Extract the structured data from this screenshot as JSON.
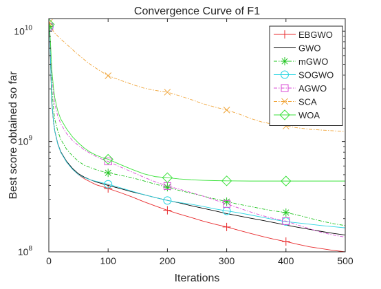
{
  "chart_data": {
    "type": "line",
    "title": "Convergence Curve of F1",
    "xlabel": "Iterations",
    "ylabel": "Best score obtained so far",
    "xlim": [
      0,
      500
    ],
    "ylim": [
      100000000.0,
      13000000000.0
    ],
    "yscale": "log",
    "grid": false,
    "legend_position": "top-right",
    "x_ticks": [
      0,
      100,
      200,
      300,
      400,
      500
    ],
    "x_tick_labels": [
      "0",
      "100",
      "200",
      "300",
      "400",
      "500"
    ],
    "y_ticks": [
      100000000.0,
      1000000000.0,
      10000000000.0
    ],
    "y_tick_labels": [
      {
        "base": "10",
        "exp": "8"
      },
      {
        "base": "10",
        "exp": "9"
      },
      {
        "base": "10",
        "exp": "10"
      }
    ],
    "series": [
      {
        "name": "EBGWO",
        "color": "#e8292b",
        "marker": "plus",
        "marker_x": [
          1,
          100,
          200,
          300,
          400
        ],
        "points": [
          [
            1,
            11000000000.0
          ],
          [
            3,
            5000000000.0
          ],
          [
            5,
            2200000000.0
          ],
          [
            8,
            1500000000.0
          ],
          [
            10,
            1250000000.0
          ],
          [
            15,
            950000000.0
          ],
          [
            20,
            800000000.0
          ],
          [
            30,
            650000000.0
          ],
          [
            40,
            560000000.0
          ],
          [
            50,
            500000000.0
          ],
          [
            60,
            460000000.0
          ],
          [
            70,
            430000000.0
          ],
          [
            80,
            405000000.0
          ],
          [
            90,
            390000000.0
          ],
          [
            100,
            375000000.0
          ],
          [
            120,
            345000000.0
          ],
          [
            140,
            315000000.0
          ],
          [
            160,
            285000000.0
          ],
          [
            180,
            260000000.0
          ],
          [
            200,
            238000000.0
          ],
          [
            220,
            220000000.0
          ],
          [
            240,
            205000000.0
          ],
          [
            260,
            190000000.0
          ],
          [
            280,
            178000000.0
          ],
          [
            300,
            168000000.0
          ],
          [
            320,
            157000000.0
          ],
          [
            340,
            147000000.0
          ],
          [
            360,
            138000000.0
          ],
          [
            380,
            130000000.0
          ],
          [
            400,
            124000000.0
          ],
          [
            420,
            117000000.0
          ],
          [
            440,
            111000000.0
          ],
          [
            460,
            107000000.0
          ],
          [
            480,
            103000000.0
          ],
          [
            500,
            100000000.0
          ]
        ]
      },
      {
        "name": "GWO",
        "color": "#000000",
        "marker": "none",
        "marker_x": [],
        "points": [
          [
            1,
            11000000000.0
          ],
          [
            3,
            5200000000.0
          ],
          [
            5,
            2300000000.0
          ],
          [
            8,
            1500000000.0
          ],
          [
            10,
            1250000000.0
          ],
          [
            15,
            960000000.0
          ],
          [
            20,
            810000000.0
          ],
          [
            30,
            660000000.0
          ],
          [
            40,
            570000000.0
          ],
          [
            50,
            510000000.0
          ],
          [
            60,
            475000000.0
          ],
          [
            70,
            450000000.0
          ],
          [
            80,
            430000000.0
          ],
          [
            90,
            415000000.0
          ],
          [
            100,
            400000000.0
          ],
          [
            120,
            375000000.0
          ],
          [
            140,
            350000000.0
          ],
          [
            160,
            330000000.0
          ],
          [
            180,
            310000000.0
          ],
          [
            200,
            293000000.0
          ],
          [
            220,
            278000000.0
          ],
          [
            240,
            262000000.0
          ],
          [
            260,
            248000000.0
          ],
          [
            280,
            235000000.0
          ],
          [
            300,
            222000000.0
          ],
          [
            320,
            212000000.0
          ],
          [
            340,
            202000000.0
          ],
          [
            360,
            193000000.0
          ],
          [
            380,
            184000000.0
          ],
          [
            400,
            175000000.0
          ],
          [
            420,
            167000000.0
          ],
          [
            440,
            160000000.0
          ],
          [
            460,
            153000000.0
          ],
          [
            480,
            147000000.0
          ],
          [
            500,
            142000000.0
          ]
        ]
      },
      {
        "name": "mGWO",
        "color": "#1fc41f",
        "marker": "star",
        "marker_x": [
          1,
          100,
          200,
          300,
          400
        ],
        "points": [
          [
            1,
            11000000000.0
          ],
          [
            3,
            6000000000.0
          ],
          [
            5,
            3000000000.0
          ],
          [
            8,
            2000000000.0
          ],
          [
            10,
            1600000000.0
          ],
          [
            15,
            1250000000.0
          ],
          [
            20,
            1050000000.0
          ],
          [
            30,
            850000000.0
          ],
          [
            40,
            740000000.0
          ],
          [
            50,
            660000000.0
          ],
          [
            60,
            610000000.0
          ],
          [
            70,
            580000000.0
          ],
          [
            80,
            555000000.0
          ],
          [
            90,
            535000000.0
          ],
          [
            100,
            520000000.0
          ],
          [
            120,
            495000000.0
          ],
          [
            140,
            470000000.0
          ],
          [
            160,
            440000000.0
          ],
          [
            180,
            410000000.0
          ],
          [
            200,
            385000000.0
          ],
          [
            220,
            360000000.0
          ],
          [
            240,
            340000000.0
          ],
          [
            260,
            320000000.0
          ],
          [
            280,
            302000000.0
          ],
          [
            300,
            285000000.0
          ],
          [
            320,
            270000000.0
          ],
          [
            340,
            258000000.0
          ],
          [
            360,
            245000000.0
          ],
          [
            380,
            235000000.0
          ],
          [
            400,
            227000000.0
          ],
          [
            420,
            215000000.0
          ],
          [
            440,
            202000000.0
          ],
          [
            460,
            190000000.0
          ],
          [
            480,
            180000000.0
          ],
          [
            500,
            173000000.0
          ]
        ]
      },
      {
        "name": "SOGWO",
        "color": "#2ad5e3",
        "marker": "circle",
        "marker_x": [
          1,
          100,
          200,
          300,
          400
        ],
        "points": [
          [
            1,
            11000000000.0
          ],
          [
            3,
            5100000000.0
          ],
          [
            5,
            2300000000.0
          ],
          [
            8,
            1500000000.0
          ],
          [
            10,
            1250000000.0
          ],
          [
            15,
            950000000.0
          ],
          [
            20,
            800000000.0
          ],
          [
            30,
            650000000.0
          ],
          [
            40,
            560000000.0
          ],
          [
            50,
            500000000.0
          ],
          [
            60,
            470000000.0
          ],
          [
            70,
            450000000.0
          ],
          [
            80,
            435000000.0
          ],
          [
            90,
            422000000.0
          ],
          [
            100,
            410000000.0
          ],
          [
            120,
            382000000.0
          ],
          [
            140,
            355000000.0
          ],
          [
            160,
            330000000.0
          ],
          [
            180,
            310000000.0
          ],
          [
            200,
            292000000.0
          ],
          [
            220,
            280000000.0
          ],
          [
            240,
            270000000.0
          ],
          [
            260,
            258000000.0
          ],
          [
            280,
            245000000.0
          ],
          [
            300,
            235000000.0
          ],
          [
            320,
            226000000.0
          ],
          [
            340,
            216000000.0
          ],
          [
            360,
            206000000.0
          ],
          [
            380,
            196000000.0
          ],
          [
            400,
            188000000.0
          ],
          [
            420,
            183000000.0
          ],
          [
            440,
            178000000.0
          ],
          [
            460,
            173000000.0
          ],
          [
            480,
            169000000.0
          ],
          [
            500,
            165000000.0
          ]
        ]
      },
      {
        "name": "AGWO",
        "color": "#d94ad6",
        "marker": "square",
        "marker_x": [
          1,
          100,
          200,
          300,
          400
        ],
        "points": [
          [
            1,
            11000000000.0
          ],
          [
            3,
            7000000000.0
          ],
          [
            5,
            4000000000.0
          ],
          [
            8,
            2700000000.0
          ],
          [
            10,
            2200000000.0
          ],
          [
            15,
            1700000000.0
          ],
          [
            20,
            1450000000.0
          ],
          [
            30,
            1180000000.0
          ],
          [
            40,
            1020000000.0
          ],
          [
            50,
            920000000.0
          ],
          [
            60,
            840000000.0
          ],
          [
            70,
            780000000.0
          ],
          [
            80,
            730000000.0
          ],
          [
            90,
            690000000.0
          ],
          [
            100,
            660000000.0
          ],
          [
            120,
            590000000.0
          ],
          [
            140,
            530000000.0
          ],
          [
            160,
            475000000.0
          ],
          [
            180,
            430000000.0
          ],
          [
            200,
            395000000.0
          ],
          [
            220,
            370000000.0
          ],
          [
            240,
            345000000.0
          ],
          [
            260,
            320000000.0
          ],
          [
            280,
            295000000.0
          ],
          [
            300,
            272000000.0
          ],
          [
            320,
            250000000.0
          ],
          [
            340,
            230000000.0
          ],
          [
            360,
            213000000.0
          ],
          [
            380,
            200000000.0
          ],
          [
            400,
            190000000.0
          ],
          [
            420,
            175000000.0
          ],
          [
            440,
            162000000.0
          ],
          [
            460,
            150000000.0
          ],
          [
            480,
            142000000.0
          ],
          [
            500,
            136000000.0
          ]
        ]
      },
      {
        "name": "SCA",
        "color": "#f0a53a",
        "marker": "x",
        "marker_x": [
          1,
          100,
          200,
          300,
          400
        ],
        "points": [
          [
            1,
            12000000000.0
          ],
          [
            5,
            10500000000.0
          ],
          [
            10,
            9600000000.0
          ],
          [
            20,
            8500000000.0
          ],
          [
            30,
            7600000000.0
          ],
          [
            40,
            6800000000.0
          ],
          [
            50,
            6100000000.0
          ],
          [
            60,
            5500000000.0
          ],
          [
            70,
            5000000000.0
          ],
          [
            80,
            4600000000.0
          ],
          [
            90,
            4250000000.0
          ],
          [
            100,
            3950000000.0
          ],
          [
            120,
            3600000000.0
          ],
          [
            140,
            3300000000.0
          ],
          [
            160,
            3050000000.0
          ],
          [
            180,
            2900000000.0
          ],
          [
            200,
            2800000000.0
          ],
          [
            220,
            2600000000.0
          ],
          [
            240,
            2400000000.0
          ],
          [
            260,
            2200000000.0
          ],
          [
            280,
            2050000000.0
          ],
          [
            300,
            1930000000.0
          ],
          [
            320,
            1780000000.0
          ],
          [
            340,
            1620000000.0
          ],
          [
            360,
            1500000000.0
          ],
          [
            380,
            1430000000.0
          ],
          [
            400,
            1380000000.0
          ],
          [
            420,
            1330000000.0
          ],
          [
            440,
            1290000000.0
          ],
          [
            460,
            1270000000.0
          ],
          [
            480,
            1250000000.0
          ],
          [
            500,
            1230000000.0
          ]
        ]
      },
      {
        "name": "WOA",
        "color": "#3be23b",
        "marker": "diamond",
        "marker_x": [
          1,
          100,
          200,
          300,
          400
        ],
        "points": [
          [
            1,
            11500000000.0
          ],
          [
            3,
            7500000000.0
          ],
          [
            5,
            4500000000.0
          ],
          [
            8,
            3000000000.0
          ],
          [
            10,
            2500000000.0
          ],
          [
            15,
            1900000000.0
          ],
          [
            20,
            1600000000.0
          ],
          [
            30,
            1300000000.0
          ],
          [
            40,
            1100000000.0
          ],
          [
            50,
            970000000.0
          ],
          [
            60,
            870000000.0
          ],
          [
            70,
            800000000.0
          ],
          [
            80,
            750000000.0
          ],
          [
            90,
            715000000.0
          ],
          [
            100,
            690000000.0
          ],
          [
            120,
            620000000.0
          ],
          [
            140,
            560000000.0
          ],
          [
            160,
            510000000.0
          ],
          [
            180,
            480000000.0
          ],
          [
            200,
            470000000.0
          ],
          [
            220,
            458000000.0
          ],
          [
            240,
            450000000.0
          ],
          [
            260,
            445000000.0
          ],
          [
            280,
            442000000.0
          ],
          [
            300,
            440000000.0
          ],
          [
            340,
            438000000.0
          ],
          [
            400,
            438000000.0
          ],
          [
            450,
            438000000.0
          ],
          [
            500,
            438000000.0
          ]
        ]
      }
    ]
  }
}
